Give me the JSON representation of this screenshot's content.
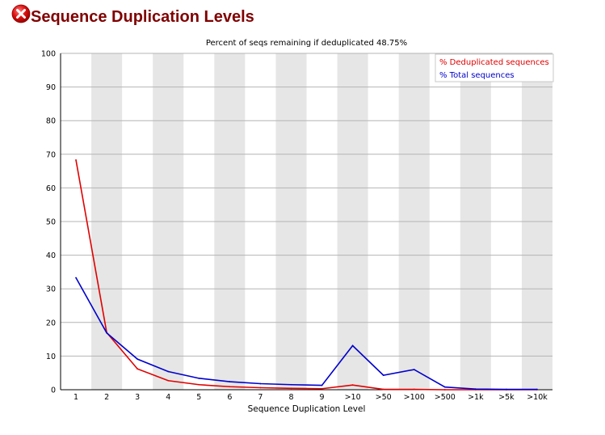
{
  "header": {
    "title": "Sequence Duplication Levels",
    "status": "fail",
    "status_icon": "error-icon",
    "status_color": "#cc0000"
  },
  "chart_data": {
    "type": "line",
    "title": "Percent of seqs remaining if deduplicated 48.75%",
    "xlabel": "Sequence Duplication Level",
    "ylabel": "",
    "categories": [
      "1",
      "2",
      "3",
      "4",
      "5",
      "6",
      "7",
      "8",
      "9",
      ">10",
      ">50",
      ">100",
      ">500",
      ">1k",
      ">5k",
      ">10k"
    ],
    "ylim": [
      0,
      100
    ],
    "yticks": [
      0,
      10,
      20,
      30,
      40,
      50,
      60,
      70,
      80,
      90,
      100
    ],
    "grid": true,
    "alternating_bands": true,
    "band_color": "#e6e6e6",
    "legend_position": "top-right",
    "series": [
      {
        "name": "% Deduplicated sequences",
        "color": "#e00000",
        "values": [
          68.3,
          17.0,
          6.2,
          2.7,
          1.5,
          0.9,
          0.6,
          0.4,
          0.3,
          1.4,
          0.1,
          0.1,
          0.0,
          0.0,
          0.0,
          0.0
        ]
      },
      {
        "name": "% Total sequences",
        "color": "#0000cc",
        "values": [
          33.3,
          16.9,
          9.1,
          5.4,
          3.4,
          2.4,
          1.8,
          1.5,
          1.3,
          13.1,
          4.3,
          6.0,
          0.8,
          0.2,
          0.1,
          0.1
        ]
      }
    ]
  }
}
